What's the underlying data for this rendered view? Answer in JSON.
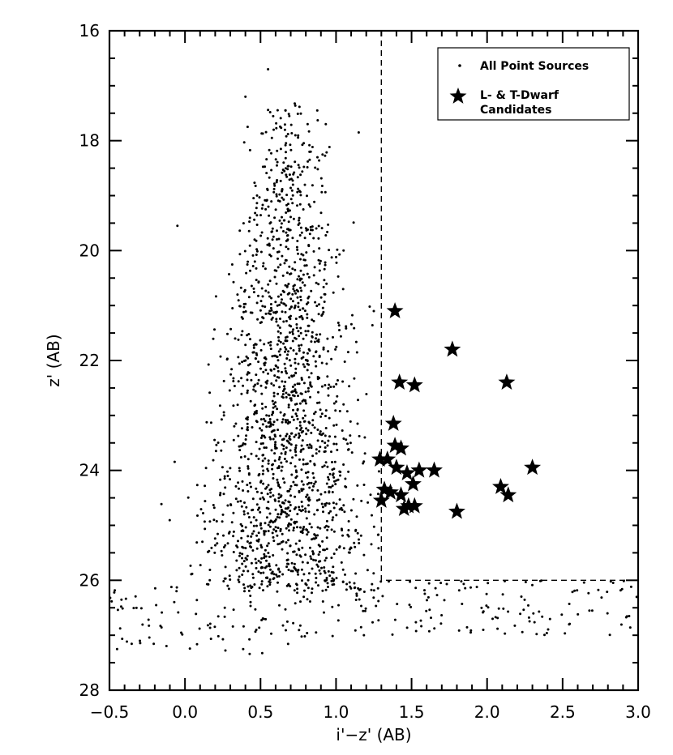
{
  "chart_data": {
    "type": "scatter",
    "xlabel": "i'−z' (AB)",
    "ylabel": "z' (AB)",
    "xlim": [
      -0.5,
      3.0
    ],
    "ylim": [
      16,
      28
    ],
    "y_inverted": true,
    "xticks": [
      "−0.5",
      "0.0",
      "0.5",
      "1.0",
      "1.5",
      "2.0",
      "2.5",
      "3.0"
    ],
    "xtick_values": [
      -0.5,
      0.0,
      0.5,
      1.0,
      1.5,
      2.0,
      2.5,
      3.0
    ],
    "yticks": [
      "16",
      "18",
      "20",
      "22",
      "24",
      "26",
      "28"
    ],
    "ytick_values": [
      16,
      18,
      20,
      22,
      24,
      26,
      28
    ],
    "legend_position": "top-right",
    "selection_boundary": {
      "x_min": 1.3,
      "y_max": 26,
      "style": "dashed"
    },
    "series": [
      {
        "name": "All Point Sources",
        "marker": "dot",
        "cloud": {
          "count_approx": 2000,
          "core_x_range": [
            0.0,
            1.3
          ],
          "core_y_range": [
            17.2,
            26.0
          ],
          "faint_tail_x_range": [
            -0.5,
            3.0
          ],
          "faint_tail_y_range": [
            26.0,
            27.4
          ]
        }
      },
      {
        "name": "L- & T-Dwarf\nCandidates",
        "marker": "star",
        "points": [
          [
            1.39,
            21.1
          ],
          [
            1.77,
            21.8
          ],
          [
            1.42,
            22.4
          ],
          [
            1.52,
            22.45
          ],
          [
            2.13,
            22.4
          ],
          [
            1.38,
            23.15
          ],
          [
            1.29,
            23.8
          ],
          [
            1.34,
            23.8
          ],
          [
            1.39,
            23.55
          ],
          [
            1.43,
            23.6
          ],
          [
            1.4,
            23.95
          ],
          [
            1.47,
            24.05
          ],
          [
            1.55,
            24.0
          ],
          [
            1.65,
            24.0
          ],
          [
            1.51,
            24.25
          ],
          [
            1.32,
            24.35
          ],
          [
            1.36,
            24.4
          ],
          [
            1.43,
            24.45
          ],
          [
            1.3,
            24.55
          ],
          [
            1.45,
            24.7
          ],
          [
            1.48,
            24.65
          ],
          [
            1.52,
            24.65
          ],
          [
            1.8,
            24.75
          ],
          [
            2.09,
            24.3
          ],
          [
            2.14,
            24.45
          ],
          [
            2.3,
            23.95
          ]
        ]
      }
    ]
  }
}
